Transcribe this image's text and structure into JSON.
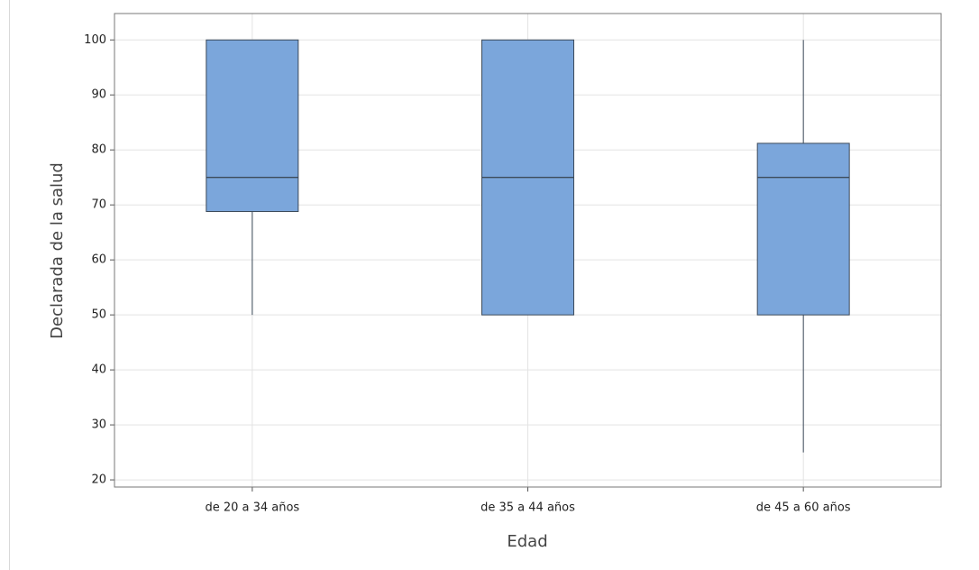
{
  "chart_data": {
    "type": "box",
    "x_label": "Edad",
    "y_label": "Declarada de la salud",
    "categories": [
      "de 20 a 34 años",
      "de 35 a 44 años",
      "de 45 a 60 años"
    ],
    "boxes": [
      {
        "min": 50,
        "q1": 68.8,
        "median": 75,
        "q3": 100,
        "max": 100
      },
      {
        "min": 50,
        "q1": 50,
        "median": 75,
        "q3": 100,
        "max": 100
      },
      {
        "min": 25,
        "q1": 50,
        "median": 75,
        "q3": 81.2,
        "max": 100
      }
    ],
    "color": "#7ba6db",
    "ylim": [
      18.7,
      104.8
    ],
    "yticks": [
      20,
      30,
      40,
      50,
      60,
      70,
      80,
      90,
      100
    ],
    "grid": true
  }
}
